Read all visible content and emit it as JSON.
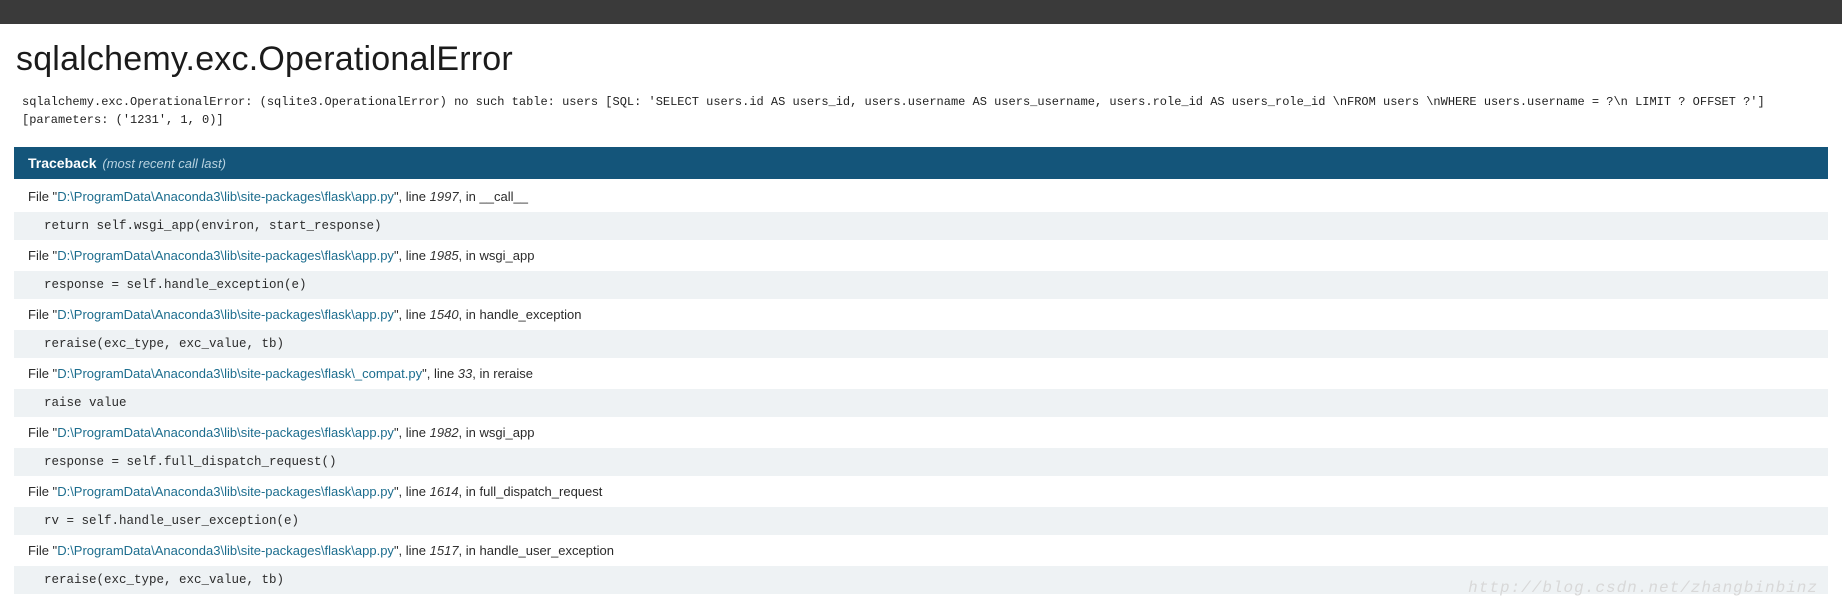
{
  "heading": "sqlalchemy.exc.OperationalError",
  "error_message": "sqlalchemy.exc.OperationalError: (sqlite3.OperationalError) no such table: users [SQL: 'SELECT users.id AS users_id, users.username AS users_username, users.role_id AS users_role_id \\nFROM users \\nWHERE users.username = ?\\n LIMIT ? OFFSET ?'] [parameters: ('1231', 1, 0)]",
  "traceback": {
    "label": "Traceback",
    "subtitle": "(most recent call last)",
    "header_bg": "#14557a",
    "header_text_color": "#ffffff",
    "sub_color": "#b8d2e0",
    "code_bg": "#eef2f4",
    "path_color": "#1c6d8e",
    "frames": [
      {
        "path": "D:\\ProgramData\\Anaconda3\\lib\\site-packages\\flask\\app.py",
        "line": "1997",
        "func": "__call__",
        "code": "return self.wsgi_app(environ, start_response)"
      },
      {
        "path": "D:\\ProgramData\\Anaconda3\\lib\\site-packages\\flask\\app.py",
        "line": "1985",
        "func": "wsgi_app",
        "code": "response = self.handle_exception(e)"
      },
      {
        "path": "D:\\ProgramData\\Anaconda3\\lib\\site-packages\\flask\\app.py",
        "line": "1540",
        "func": "handle_exception",
        "code": "reraise(exc_type, exc_value, tb)"
      },
      {
        "path": "D:\\ProgramData\\Anaconda3\\lib\\site-packages\\flask\\_compat.py",
        "line": "33",
        "func": "reraise",
        "code": "raise value"
      },
      {
        "path": "D:\\ProgramData\\Anaconda3\\lib\\site-packages\\flask\\app.py",
        "line": "1982",
        "func": "wsgi_app",
        "code": "response = self.full_dispatch_request()"
      },
      {
        "path": "D:\\ProgramData\\Anaconda3\\lib\\site-packages\\flask\\app.py",
        "line": "1614",
        "func": "full_dispatch_request",
        "code": "rv = self.handle_user_exception(e)"
      },
      {
        "path": "D:\\ProgramData\\Anaconda3\\lib\\site-packages\\flask\\app.py",
        "line": "1517",
        "func": "handle_user_exception",
        "code": "reraise(exc_type, exc_value, tb)"
      }
    ]
  },
  "watermark": "http://blog.csdn.net/zhangbinbinz",
  "labels": {
    "file_prefix": "File ",
    "line_prefix": ", line ",
    "in_prefix": ", in "
  }
}
